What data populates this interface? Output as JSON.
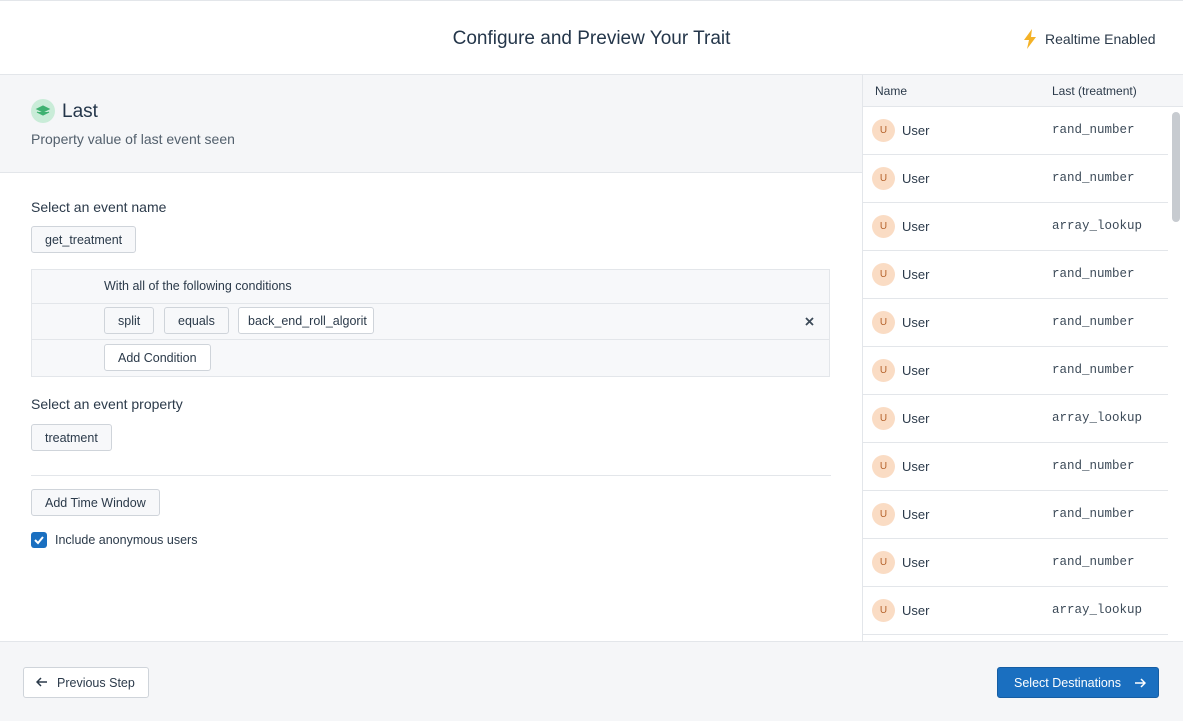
{
  "header": {
    "title": "Configure and Preview Your Trait",
    "realtime": "Realtime Enabled"
  },
  "trait": {
    "name": "Last",
    "description": "Property value of last event seen"
  },
  "form": {
    "event_label": "Select an event name",
    "event_name": "get_treatment",
    "conditions_label": "With all of the following conditions",
    "condition": {
      "field": "split",
      "operator": "equals",
      "value": "back_end_roll_algorit"
    },
    "add_condition": "Add Condition",
    "property_label": "Select an event property",
    "property": "treatment",
    "add_time_window": "Add Time Window",
    "include_anonymous": "Include anonymous users"
  },
  "table": {
    "columns": [
      "Name",
      "Last (treatment)"
    ],
    "rows": [
      {
        "initial": "U",
        "name": "User",
        "value": "rand_number"
      },
      {
        "initial": "U",
        "name": "User",
        "value": "rand_number"
      },
      {
        "initial": "U",
        "name": "User",
        "value": "array_lookup"
      },
      {
        "initial": "U",
        "name": "User",
        "value": "rand_number"
      },
      {
        "initial": "U",
        "name": "User",
        "value": "rand_number"
      },
      {
        "initial": "U",
        "name": "User",
        "value": "rand_number"
      },
      {
        "initial": "U",
        "name": "User",
        "value": "array_lookup"
      },
      {
        "initial": "U",
        "name": "User",
        "value": "rand_number"
      },
      {
        "initial": "U",
        "name": "User",
        "value": "rand_number"
      },
      {
        "initial": "U",
        "name": "User",
        "value": "rand_number"
      },
      {
        "initial": "U",
        "name": "User",
        "value": "array_lookup"
      }
    ]
  },
  "footer": {
    "previous": "Previous Step",
    "next": "Select Destinations"
  }
}
